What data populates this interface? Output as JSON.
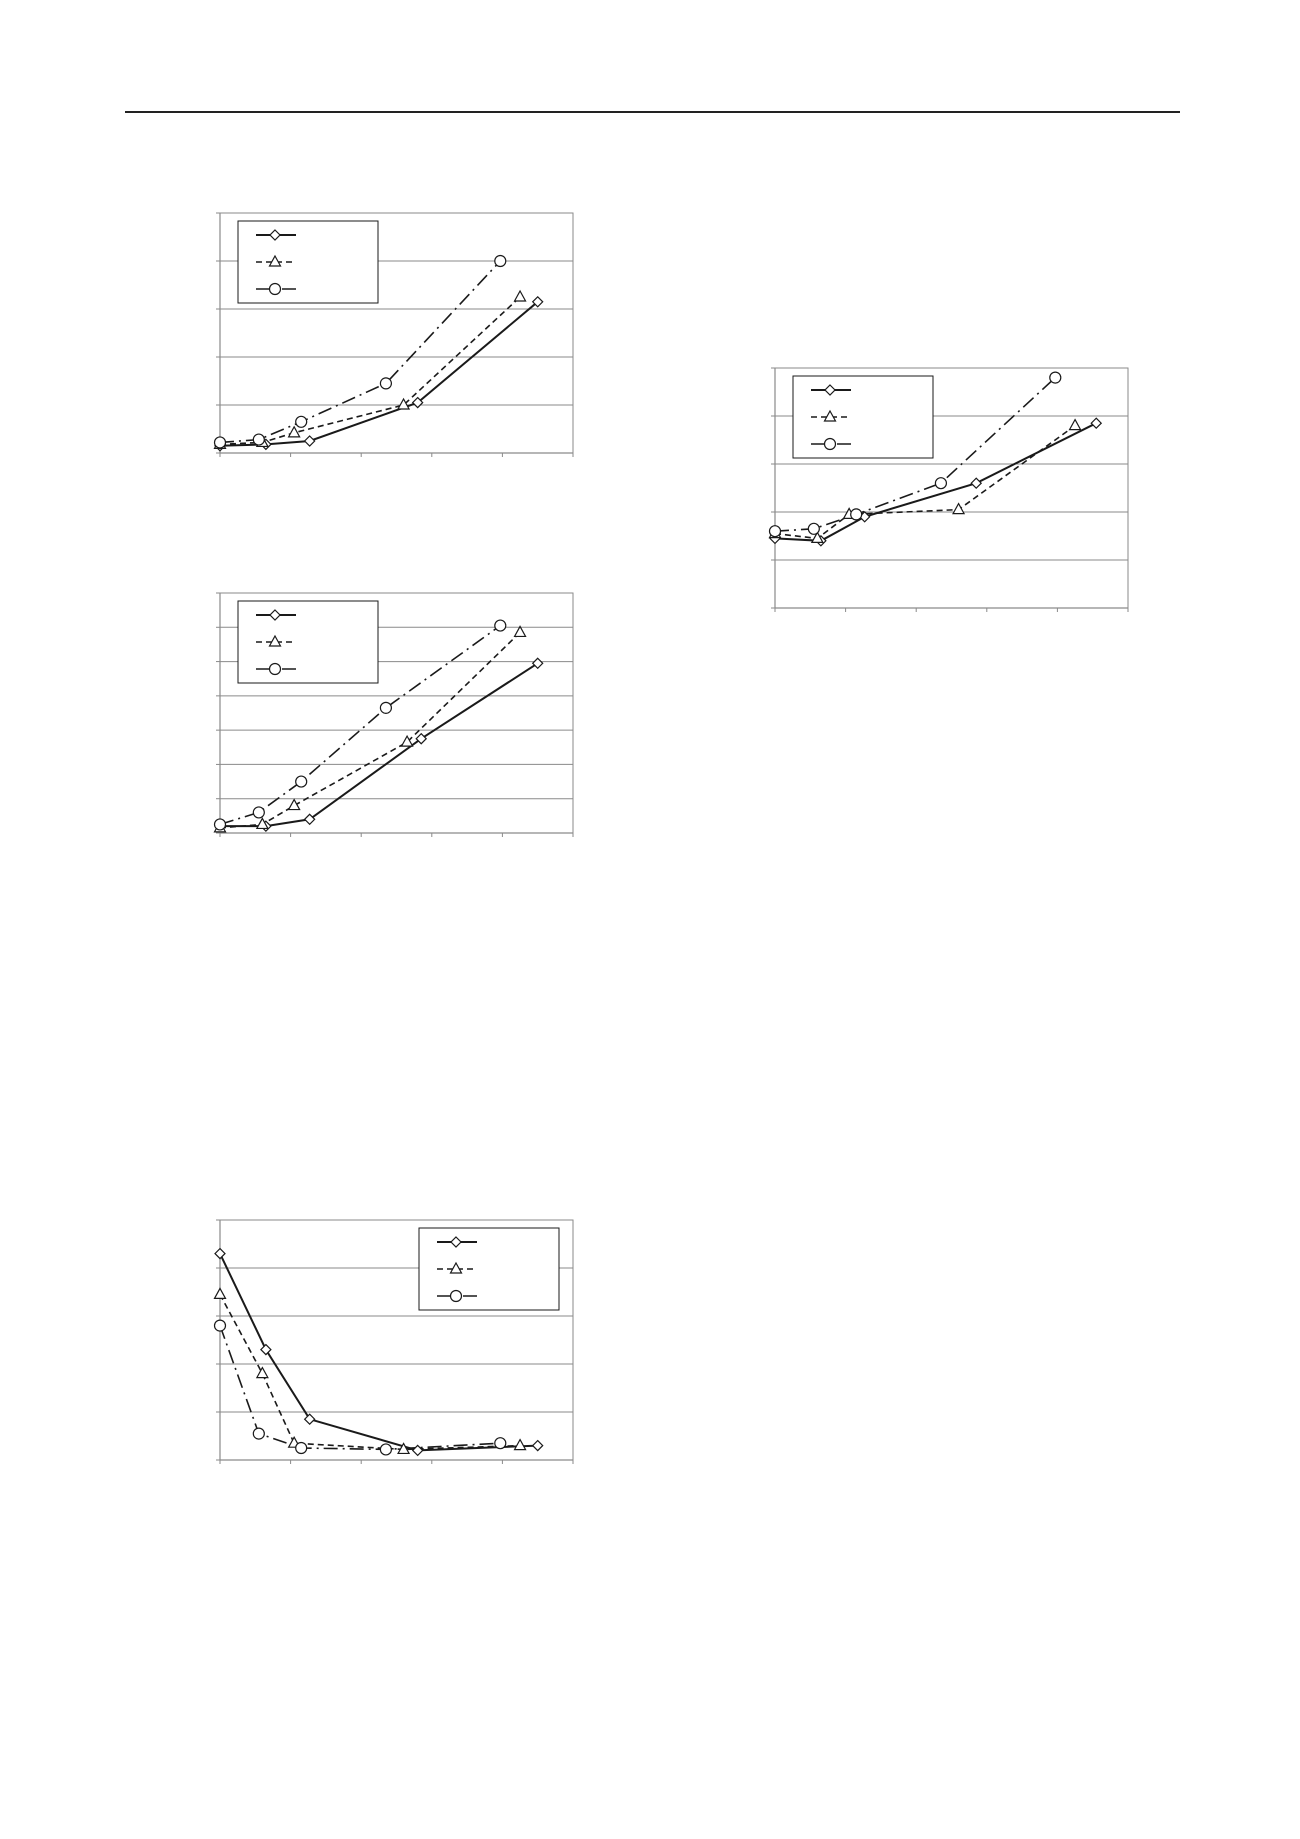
{
  "chart_data": [
    {
      "type": "line",
      "title": "",
      "xlabel": "",
      "ylabel": "",
      "xlim": [
        0,
        5
      ],
      "ylim": [
        0,
        5
      ],
      "grid": true,
      "legend_position": "top-left",
      "series": [
        {
          "style": "solid",
          "marker": "diamond",
          "points": [
            [
              0,
              0.15
            ],
            [
              0.65,
              0.18
            ],
            [
              1.27,
              0.25
            ],
            [
              2.8,
              1.05
            ],
            [
              4.5,
              3.15
            ]
          ]
        },
        {
          "style": "dashed",
          "marker": "triangle",
          "points": [
            [
              0,
              0.18
            ],
            [
              0.6,
              0.22
            ],
            [
              1.05,
              0.42
            ],
            [
              2.6,
              1.0
            ],
            [
              4.25,
              3.25
            ]
          ]
        },
        {
          "style": "dashdot",
          "marker": "circle",
          "points": [
            [
              0,
              0.22
            ],
            [
              0.55,
              0.28
            ],
            [
              1.15,
              0.65
            ],
            [
              2.35,
              1.45
            ],
            [
              3.97,
              4.0
            ]
          ]
        }
      ]
    },
    {
      "type": "line",
      "title": "",
      "xlabel": "",
      "ylabel": "",
      "xlim": [
        0,
        5
      ],
      "ylim": [
        0,
        7
      ],
      "grid": true,
      "legend_position": "top-left",
      "series": [
        {
          "style": "solid",
          "marker": "diamond",
          "points": [
            [
              0,
              0.2
            ],
            [
              0.65,
              0.2
            ],
            [
              1.27,
              0.4
            ],
            [
              2.85,
              2.75
            ],
            [
              4.5,
              4.95
            ]
          ]
        },
        {
          "style": "dashed",
          "marker": "triangle",
          "points": [
            [
              0,
              0.15
            ],
            [
              0.6,
              0.25
            ],
            [
              1.05,
              0.8
            ],
            [
              2.65,
              2.65
            ],
            [
              4.25,
              5.85
            ]
          ]
        },
        {
          "style": "dashdot",
          "marker": "circle",
          "points": [
            [
              0,
              0.25
            ],
            [
              0.55,
              0.6
            ],
            [
              1.15,
              1.5
            ],
            [
              2.35,
              3.65
            ],
            [
              3.97,
              6.05
            ]
          ]
        }
      ]
    },
    {
      "type": "line",
      "title": "",
      "xlabel": "",
      "ylabel": "",
      "xlim": [
        0,
        5
      ],
      "ylim": [
        0,
        5
      ],
      "grid": true,
      "legend_position": "top-right",
      "series": [
        {
          "style": "solid",
          "marker": "diamond",
          "points": [
            [
              0,
              4.3
            ],
            [
              0.65,
              2.3
            ],
            [
              1.27,
              0.85
            ],
            [
              2.8,
              0.2
            ],
            [
              4.5,
              0.3
            ]
          ]
        },
        {
          "style": "dashed",
          "marker": "triangle",
          "points": [
            [
              0,
              3.45
            ],
            [
              0.6,
              1.8
            ],
            [
              1.05,
              0.35
            ],
            [
              2.6,
              0.22
            ],
            [
              4.25,
              0.3
            ]
          ]
        },
        {
          "style": "dashdot",
          "marker": "circle",
          "points": [
            [
              0,
              2.8
            ],
            [
              0.55,
              0.55
            ],
            [
              1.15,
              0.25
            ],
            [
              2.35,
              0.22
            ],
            [
              3.97,
              0.35
            ]
          ]
        }
      ]
    },
    {
      "type": "line",
      "title": "",
      "xlabel": "",
      "ylabel": "",
      "xlim": [
        0,
        5
      ],
      "ylim": [
        0,
        5
      ],
      "grid": true,
      "legend_position": "top-left",
      "series": [
        {
          "style": "solid",
          "marker": "diamond",
          "points": [
            [
              0,
              1.45
            ],
            [
              0.65,
              1.4
            ],
            [
              1.27,
              1.9
            ],
            [
              2.85,
              2.6
            ],
            [
              4.55,
              3.85
            ]
          ]
        },
        {
          "style": "dashed",
          "marker": "triangle",
          "points": [
            [
              0,
              1.55
            ],
            [
              0.6,
              1.45
            ],
            [
              1.05,
              1.95
            ],
            [
              2.6,
              2.05
            ],
            [
              4.25,
              3.8
            ]
          ]
        },
        {
          "style": "dashdot",
          "marker": "circle",
          "points": [
            [
              0,
              1.6
            ],
            [
              0.55,
              1.65
            ],
            [
              1.15,
              1.95
            ],
            [
              2.35,
              2.6
            ],
            [
              3.97,
              4.8
            ]
          ]
        }
      ]
    }
  ]
}
